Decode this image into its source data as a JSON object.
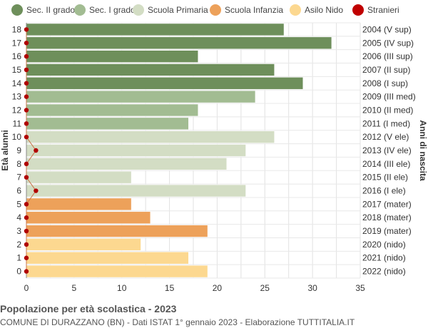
{
  "legend": {
    "items": [
      {
        "label": "Sec. II grado",
        "color": "#6e8f5b"
      },
      {
        "label": "Sec. I grado",
        "color": "#a2bc92"
      },
      {
        "label": "Scuola Primaria",
        "color": "#d3ddc4"
      },
      {
        "label": "Scuola Infanzia",
        "color": "#eda15a"
      },
      {
        "label": "Asilo Nido",
        "color": "#fcd890"
      },
      {
        "label": "Stranieri",
        "color": "#c00000"
      }
    ]
  },
  "chart_data": {
    "type": "bar",
    "orientation": "horizontal",
    "title": "Popolazione per età scolastica - 2023",
    "subtitle": "COMUNE DI DURAZZANO (BN) - Dati ISTAT 1° gennaio 2023 - Elaborazione TUTTITALIA.IT",
    "ylabel_left": "Età alunni",
    "ylabel_right": "Anni di nascita",
    "xlim": [
      0,
      35
    ],
    "xticks": [
      "0",
      "5",
      "10",
      "15",
      "20",
      "25",
      "30",
      "35"
    ],
    "categories": [
      "18",
      "17",
      "16",
      "15",
      "14",
      "13",
      "12",
      "11",
      "10",
      "9",
      "8",
      "7",
      "6",
      "5",
      "4",
      "3",
      "2",
      "1",
      "0"
    ],
    "birth_years": [
      "2004 (V sup)",
      "2005 (IV sup)",
      "2006 (III sup)",
      "2007 (II sup)",
      "2008 (I sup)",
      "2009 (III med)",
      "2010 (II med)",
      "2011 (I med)",
      "2012 (V ele)",
      "2013 (IV ele)",
      "2014 (III ele)",
      "2015 (II ele)",
      "2016 (I ele)",
      "2017 (mater)",
      "2018 (mater)",
      "2019 (mater)",
      "2020 (nido)",
      "2021 (nido)",
      "2022 (nido)"
    ],
    "values": [
      27,
      32,
      18,
      26,
      29,
      24,
      18,
      17,
      26,
      23,
      21,
      11,
      23,
      11,
      13,
      19,
      12,
      17,
      19
    ],
    "groups": [
      "sec2",
      "sec2",
      "sec2",
      "sec2",
      "sec2",
      "sec1",
      "sec1",
      "sec1",
      "prim",
      "prim",
      "prim",
      "prim",
      "prim",
      "inf",
      "inf",
      "inf",
      "nido",
      "nido",
      "nido"
    ],
    "group_colors": {
      "sec2": "#6e8f5b",
      "sec1": "#a2bc92",
      "prim": "#d3ddc4",
      "inf": "#eda15a",
      "nido": "#fcd890"
    },
    "stranieri": [
      0,
      0,
      0,
      0,
      0,
      0,
      0,
      0,
      0,
      1,
      0,
      0,
      1,
      0,
      0,
      0,
      0,
      0,
      0
    ]
  }
}
